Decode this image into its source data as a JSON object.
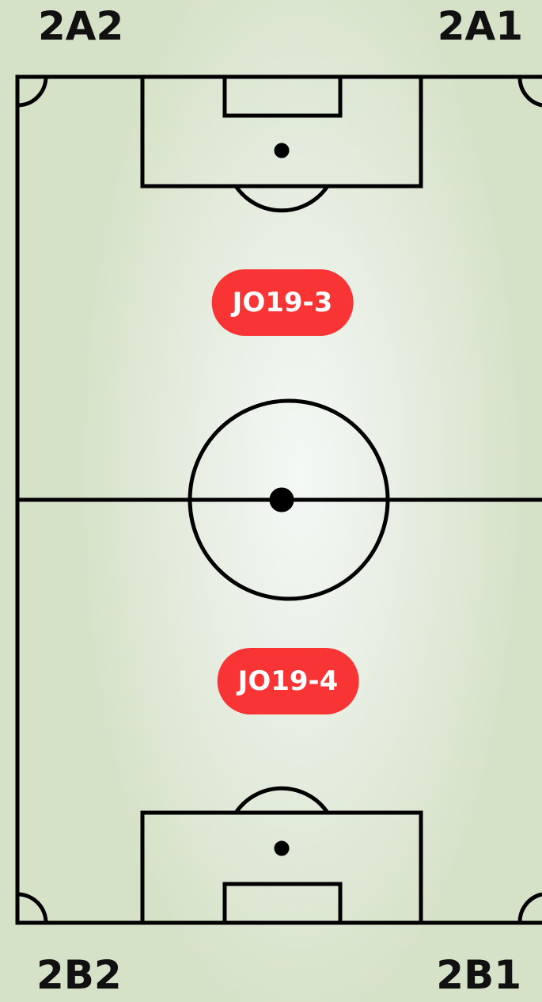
{
  "corners": {
    "top_left": "2A2",
    "top_right": "2A1",
    "bottom_left": "2B2",
    "bottom_right": "2B1"
  },
  "teams": [
    "JO19-3",
    "JO19-4"
  ]
}
